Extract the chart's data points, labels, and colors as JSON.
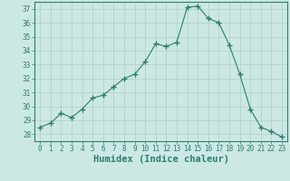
{
  "x": [
    0,
    1,
    2,
    3,
    4,
    5,
    6,
    7,
    8,
    9,
    10,
    11,
    12,
    13,
    14,
    15,
    16,
    17,
    18,
    19,
    20,
    21,
    22,
    23
  ],
  "y": [
    28.5,
    28.8,
    29.5,
    29.2,
    29.8,
    30.6,
    30.8,
    31.4,
    32.0,
    32.3,
    33.2,
    34.5,
    34.3,
    34.6,
    37.1,
    37.2,
    36.3,
    36.0,
    34.4,
    32.3,
    29.8,
    28.5,
    28.2,
    27.8
  ],
  "line_color": "#2e7d6e",
  "marker": "+",
  "marker_size": 4,
  "bg_color": "#cce8e4",
  "grid_color": "#b0ceca",
  "xlabel": "Humidex (Indice chaleur)",
  "ylim": [
    27.5,
    37.5
  ],
  "xlim": [
    -0.5,
    23.5
  ],
  "yticks": [
    28,
    29,
    30,
    31,
    32,
    33,
    34,
    35,
    36,
    37
  ],
  "xticks": [
    0,
    1,
    2,
    3,
    4,
    5,
    6,
    7,
    8,
    9,
    10,
    11,
    12,
    13,
    14,
    15,
    16,
    17,
    18,
    19,
    20,
    21,
    22,
    23
  ],
  "tick_fontsize": 5.5,
  "xlabel_fontsize": 7.5
}
